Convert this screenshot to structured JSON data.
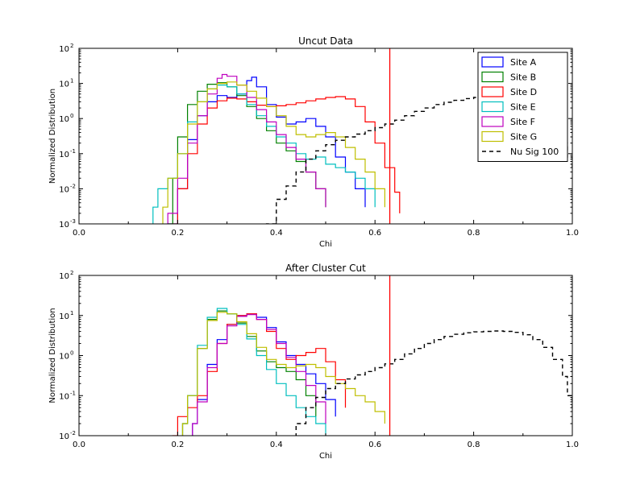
{
  "colors": {
    "site_a": "#0000ff",
    "site_b": "#008000",
    "site_d": "#ff0000",
    "site_e": "#00bfbf",
    "site_f": "#bf00bf",
    "site_g": "#bfbf00",
    "nu_sig": "#000000",
    "cut_line": "#ff0000"
  },
  "chart_data": [
    {
      "type": "line",
      "title": "Uncut Data",
      "xlabel": "Chi",
      "ylabel": "Normalized Distribution",
      "xlim": [
        0.0,
        1.0
      ],
      "ylim": [
        0.001,
        100
      ],
      "yscale": "log",
      "xticks": [
        "0.0",
        "0.2",
        "0.4",
        "0.6",
        "0.8",
        "1.0"
      ],
      "yticks": [
        {
          "value": 0.001,
          "label": "10",
          "exp": "-3"
        },
        {
          "value": 0.01,
          "label": "10",
          "exp": "-2"
        },
        {
          "value": 0.1,
          "label": "10",
          "exp": "-1"
        },
        {
          "value": 1,
          "label": "10",
          "exp": "0"
        },
        {
          "value": 10,
          "label": "10",
          "exp": "1"
        },
        {
          "value": 100,
          "label": "10",
          "exp": "2"
        }
      ],
      "vline": 0.63,
      "legend_position": "top-right",
      "series": [
        {
          "name": "Site A",
          "color": "#0000ff",
          "dash": false,
          "x": [
            0.18,
            0.2,
            0.22,
            0.24,
            0.26,
            0.28,
            0.3,
            0.32,
            0.34,
            0.35,
            0.36,
            0.38,
            0.4,
            0.42,
            0.44,
            0.46,
            0.48,
            0.5,
            0.52,
            0.54,
            0.56,
            0.58
          ],
          "y": [
            0.001,
            0.01,
            0.25,
            1.2,
            3.0,
            4.5,
            4.0,
            5.0,
            12,
            15,
            8,
            2.5,
            1.1,
            0.7,
            0.8,
            1.0,
            0.6,
            0.3,
            0.08,
            0.03,
            0.01,
            0.003
          ]
        },
        {
          "name": "Site B",
          "color": "#008000",
          "dash": false,
          "x": [
            0.18,
            0.19,
            0.2,
            0.22,
            0.24,
            0.26,
            0.28,
            0.3,
            0.32,
            0.34,
            0.36,
            0.38,
            0.4,
            0.42,
            0.44,
            0.46,
            0.48,
            0.5
          ],
          "y": [
            0.001,
            0.02,
            0.3,
            2.5,
            6.0,
            9.5,
            10.5,
            8.0,
            4.5,
            2.2,
            1.0,
            0.45,
            0.2,
            0.12,
            0.06,
            0.03,
            0.01,
            0.003
          ]
        },
        {
          "name": "Site D",
          "color": "#ff0000",
          "dash": false,
          "x": [
            0.19,
            0.2,
            0.22,
            0.24,
            0.26,
            0.28,
            0.3,
            0.32,
            0.34,
            0.36,
            0.38,
            0.4,
            0.42,
            0.44,
            0.46,
            0.48,
            0.5,
            0.52,
            0.54,
            0.56,
            0.58,
            0.6,
            0.62,
            0.64,
            0.65
          ],
          "y": [
            0.001,
            0.01,
            0.1,
            0.7,
            2.0,
            3.2,
            3.8,
            3.6,
            3.0,
            2.4,
            2.2,
            2.3,
            2.5,
            2.8,
            3.2,
            3.6,
            4.0,
            4.2,
            3.6,
            2.2,
            0.8,
            0.2,
            0.04,
            0.008,
            0.002
          ]
        },
        {
          "name": "Site E",
          "color": "#00bfbf",
          "dash": false,
          "x": [
            0.15,
            0.16,
            0.18,
            0.2,
            0.22,
            0.24,
            0.26,
            0.28,
            0.3,
            0.32,
            0.34,
            0.36,
            0.38,
            0.4,
            0.42,
            0.44,
            0.46,
            0.48,
            0.5,
            0.52,
            0.54,
            0.56,
            0.58,
            0.6
          ],
          "y": [
            0.003,
            0.01,
            0.02,
            0.1,
            0.8,
            3.0,
            7.0,
            9.0,
            8.0,
            5.0,
            2.5,
            1.2,
            0.6,
            0.3,
            0.2,
            0.1,
            0.07,
            0.08,
            0.05,
            0.04,
            0.03,
            0.02,
            0.01,
            0.003
          ]
        },
        {
          "name": "Site F",
          "color": "#bf00bf",
          "dash": false,
          "x": [
            0.18,
            0.2,
            0.22,
            0.24,
            0.26,
            0.28,
            0.29,
            0.3,
            0.32,
            0.34,
            0.36,
            0.38,
            0.4,
            0.42,
            0.44,
            0.46,
            0.48,
            0.5
          ],
          "y": [
            0.002,
            0.02,
            0.2,
            1.2,
            5.0,
            14,
            18,
            16,
            9.0,
            4.0,
            1.8,
            0.8,
            0.35,
            0.15,
            0.07,
            0.03,
            0.01,
            0.003
          ]
        },
        {
          "name": "Site G",
          "color": "#bfbf00",
          "dash": false,
          "x": [
            0.17,
            0.18,
            0.2,
            0.22,
            0.24,
            0.26,
            0.28,
            0.3,
            0.32,
            0.34,
            0.36,
            0.38,
            0.4,
            0.42,
            0.44,
            0.46,
            0.48,
            0.5,
            0.52,
            0.54,
            0.56,
            0.58,
            0.6,
            0.62
          ],
          "y": [
            0.003,
            0.02,
            0.1,
            0.7,
            3.0,
            7.0,
            10,
            11,
            9.0,
            6.0,
            3.8,
            2.2,
            1.2,
            0.6,
            0.35,
            0.3,
            0.35,
            0.4,
            0.3,
            0.15,
            0.07,
            0.03,
            0.01,
            0.003
          ]
        },
        {
          "name": "Nu Sig 100",
          "color": "#000000",
          "dash": true,
          "x": [
            0.38,
            0.4,
            0.42,
            0.44,
            0.46,
            0.48,
            0.5,
            0.52,
            0.54,
            0.56,
            0.58,
            0.6,
            0.62,
            0.64,
            0.66,
            0.68,
            0.7,
            0.72,
            0.74,
            0.76,
            0.78,
            0.8,
            0.82,
            0.84,
            0.86,
            0.88,
            0.9,
            0.92,
            0.94,
            0.96,
            0.98,
            0.99,
            1.0
          ],
          "y": [
            0.001,
            0.005,
            0.012,
            0.03,
            0.07,
            0.12,
            0.18,
            0.24,
            0.3,
            0.36,
            0.45,
            0.55,
            0.7,
            0.9,
            1.2,
            1.6,
            2.0,
            2.5,
            2.9,
            3.3,
            3.7,
            4.0,
            4.1,
            4.0,
            3.9,
            3.6,
            3.0,
            2.2,
            1.3,
            0.6,
            0.2,
            0.08,
            0.04
          ]
        }
      ]
    },
    {
      "type": "line",
      "title": "After Cluster Cut",
      "xlabel": "Chi",
      "ylabel": "Normalized Distribution",
      "xlim": [
        0.0,
        1.0
      ],
      "ylim": [
        0.01,
        100
      ],
      "yscale": "log",
      "xticks": [
        "0.0",
        "0.2",
        "0.4",
        "0.6",
        "0.8",
        "1.0"
      ],
      "yticks": [
        {
          "value": 0.01,
          "label": "10",
          "exp": "-2"
        },
        {
          "value": 0.1,
          "label": "10",
          "exp": "-1"
        },
        {
          "value": 1,
          "label": "10",
          "exp": "0"
        },
        {
          "value": 10,
          "label": "10",
          "exp": "1"
        },
        {
          "value": 100,
          "label": "10",
          "exp": "2"
        }
      ],
      "vline": 0.63,
      "legend_position": "none",
      "series": [
        {
          "color": "#0000ff",
          "dash": false,
          "x": [
            0.23,
            0.24,
            0.26,
            0.28,
            0.3,
            0.32,
            0.34,
            0.36,
            0.38,
            0.4,
            0.42,
            0.44,
            0.46,
            0.48,
            0.5,
            0.52
          ],
          "y": [
            0.02,
            0.08,
            0.6,
            2.5,
            6.0,
            10,
            11,
            9.0,
            5.0,
            2.2,
            1.0,
            0.6,
            0.35,
            0.2,
            0.08,
            0.03
          ]
        },
        {
          "color": "#008000",
          "dash": false,
          "x": [
            0.21,
            0.22,
            0.24,
            0.26,
            0.28,
            0.3,
            0.32,
            0.34,
            0.36,
            0.38,
            0.4,
            0.42,
            0.44,
            0.46,
            0.48
          ],
          "y": [
            0.02,
            0.1,
            1.5,
            8.0,
            13,
            11,
            6.5,
            3.0,
            1.3,
            0.7,
            0.5,
            0.4,
            0.25,
            0.1,
            0.03
          ]
        },
        {
          "color": "#ff0000",
          "dash": false,
          "x": [
            0.19,
            0.2,
            0.22,
            0.24,
            0.26,
            0.28,
            0.3,
            0.32,
            0.34,
            0.36,
            0.38,
            0.4,
            0.42,
            0.44,
            0.46,
            0.48,
            0.5,
            0.52,
            0.54
          ],
          "y": [
            0.01,
            0.03,
            0.05,
            0.1,
            0.4,
            2.0,
            6.0,
            10,
            11,
            8.0,
            4.0,
            1.5,
            0.8,
            1.0,
            1.2,
            1.5,
            0.7,
            0.25,
            0.05
          ]
        },
        {
          "color": "#00bfbf",
          "dash": false,
          "x": [
            0.21,
            0.22,
            0.24,
            0.26,
            0.28,
            0.3,
            0.32,
            0.34,
            0.36,
            0.38,
            0.4,
            0.42,
            0.44,
            0.46,
            0.48,
            0.5
          ],
          "y": [
            0.02,
            0.1,
            1.8,
            9.0,
            15,
            11,
            6.0,
            2.6,
            1.0,
            0.45,
            0.2,
            0.1,
            0.05,
            0.03,
            0.02,
            0.01
          ]
        },
        {
          "color": "#bf00bf",
          "dash": false,
          "x": [
            0.23,
            0.24,
            0.26,
            0.28,
            0.3,
            0.32,
            0.34,
            0.36,
            0.38,
            0.4,
            0.42,
            0.44,
            0.46,
            0.48,
            0.5
          ],
          "y": [
            0.02,
            0.07,
            0.5,
            2.0,
            5.5,
            9.5,
            10.5,
            8.0,
            4.5,
            2.0,
            0.9,
            0.4,
            0.18,
            0.07,
            0.02
          ]
        },
        {
          "color": "#bfbf00",
          "dash": false,
          "x": [
            0.21,
            0.22,
            0.24,
            0.26,
            0.28,
            0.3,
            0.32,
            0.34,
            0.36,
            0.38,
            0.4,
            0.42,
            0.44,
            0.46,
            0.48,
            0.5,
            0.52,
            0.54,
            0.56,
            0.58,
            0.6,
            0.62
          ],
          "y": [
            0.02,
            0.1,
            1.5,
            7.5,
            12,
            11,
            7.0,
            3.5,
            1.6,
            0.8,
            0.6,
            0.5,
            0.55,
            0.6,
            0.5,
            0.3,
            0.2,
            0.15,
            0.1,
            0.07,
            0.04,
            0.02
          ]
        },
        {
          "color": "#000000",
          "dash": true,
          "x": [
            0.44,
            0.46,
            0.48,
            0.5,
            0.52,
            0.54,
            0.56,
            0.58,
            0.6,
            0.62,
            0.64,
            0.66,
            0.68,
            0.7,
            0.72,
            0.74,
            0.76,
            0.78,
            0.8,
            0.82,
            0.84,
            0.86,
            0.88,
            0.9,
            0.92,
            0.94,
            0.96,
            0.98,
            0.99,
            1.0
          ],
          "y": [
            0.02,
            0.05,
            0.09,
            0.15,
            0.2,
            0.26,
            0.33,
            0.4,
            0.5,
            0.62,
            0.8,
            1.1,
            1.5,
            2.0,
            2.5,
            3.0,
            3.4,
            3.7,
            3.9,
            4.0,
            4.1,
            4.0,
            3.8,
            3.3,
            2.5,
            1.6,
            0.8,
            0.3,
            0.1,
            0.05
          ]
        }
      ]
    }
  ]
}
